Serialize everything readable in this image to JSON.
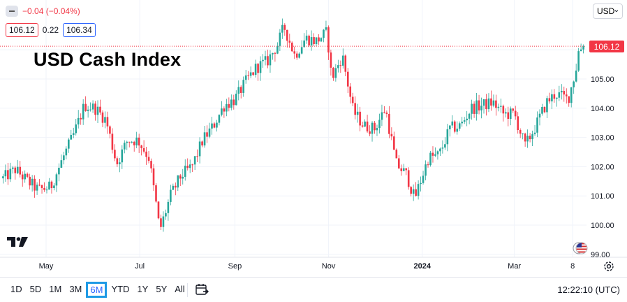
{
  "header": {
    "change_text": "−0.04 (−0.04%)",
    "bid": "106.12",
    "spread": "0.22",
    "ask": "106.34",
    "currency": "USD",
    "last_price_tag": "106.12"
  },
  "title": "USD Cash Index",
  "toolbar": {
    "ranges": [
      "1D",
      "5D",
      "1M",
      "3M",
      "6M",
      "YTD",
      "1Y",
      "5Y",
      "All"
    ],
    "active_range": "6M",
    "clock": "12:22:10 (UTC)"
  },
  "icons": [
    "collapse-icon",
    "chevron-down-icon",
    "tradingview-logo",
    "us-flag-icon",
    "gear-icon",
    "calendar-icon"
  ],
  "colors": {
    "up": "#26a69a",
    "down": "#f23645",
    "ask_border": "#2962ff",
    "active_range": "#1e9ae5"
  },
  "chart_data": {
    "type": "candlestick",
    "title": "USD Cash Index",
    "last_price": 106.12,
    "ylim": [
      99.0,
      106.4
    ],
    "y_ticks": [
      99.0,
      100.0,
      101.0,
      102.0,
      103.0,
      104.0,
      105.0,
      106.0
    ],
    "y_tick_labels": [
      "99.00",
      "100.00",
      "101.00",
      "102.00",
      "103.00",
      "104.00",
      "105.00",
      "106.0"
    ],
    "x_tick_labels": [
      "May",
      "Jul",
      "Sep",
      "Nov",
      "2024",
      "Mar",
      "8"
    ],
    "x_tick_dates": [
      "2023-05-01",
      "2023-07-01",
      "2023-09-01",
      "2023-11-01",
      "2024-01-01",
      "2024-03-01",
      "2024-04-08"
    ],
    "x_range": [
      "2023-04-01",
      "2024-04-17"
    ],
    "grid": true,
    "close_path": [
      [
        "2023-04-03",
        101.6
      ],
      [
        "2023-04-11",
        101.9
      ],
      [
        "2023-04-19",
        101.5
      ],
      [
        "2023-04-26",
        101.2
      ],
      [
        "2023-05-04",
        101.3
      ],
      [
        "2023-05-12",
        102.3
      ],
      [
        "2023-05-19",
        103.1
      ],
      [
        "2023-05-26",
        104.1
      ],
      [
        "2023-06-02",
        104.0
      ],
      [
        "2023-06-09",
        103.6
      ],
      [
        "2023-06-16",
        102.1
      ],
      [
        "2023-06-23",
        102.9
      ],
      [
        "2023-06-30",
        102.9
      ],
      [
        "2023-07-07",
        102.3
      ],
      [
        "2023-07-12",
        100.6
      ],
      [
        "2023-07-14",
        99.8
      ],
      [
        "2023-07-21",
        101.0
      ],
      [
        "2023-07-28",
        101.7
      ],
      [
        "2023-08-04",
        102.0
      ],
      [
        "2023-08-11",
        102.9
      ],
      [
        "2023-08-18",
        103.4
      ],
      [
        "2023-08-25",
        104.1
      ],
      [
        "2023-09-01",
        104.3
      ],
      [
        "2023-09-08",
        104.9
      ],
      [
        "2023-09-15",
        105.4
      ],
      [
        "2023-09-22",
        105.6
      ],
      [
        "2023-09-29",
        106.2
      ],
      [
        "2023-10-03",
        106.8
      ],
      [
        "2023-10-10",
        105.8
      ],
      [
        "2023-10-17",
        106.4
      ],
      [
        "2023-10-24",
        106.3
      ],
      [
        "2023-10-31",
        106.6
      ],
      [
        "2023-11-03",
        105.0
      ],
      [
        "2023-11-10",
        105.8
      ],
      [
        "2023-11-17",
        103.9
      ],
      [
        "2023-11-24",
        103.4
      ],
      [
        "2023-12-01",
        103.3
      ],
      [
        "2023-12-08",
        104.0
      ],
      [
        "2023-12-15",
        102.1
      ],
      [
        "2023-12-22",
        101.7
      ],
      [
        "2023-12-27",
        100.9
      ],
      [
        "2024-01-05",
        102.3
      ],
      [
        "2024-01-12",
        102.4
      ],
      [
        "2024-01-19",
        103.3
      ],
      [
        "2024-01-26",
        103.4
      ],
      [
        "2024-02-02",
        104.0
      ],
      [
        "2024-02-09",
        104.1
      ],
      [
        "2024-02-16",
        104.2
      ],
      [
        "2024-02-23",
        103.8
      ],
      [
        "2024-03-01",
        103.8
      ],
      [
        "2024-03-08",
        102.7
      ],
      [
        "2024-03-15",
        103.4
      ],
      [
        "2024-03-22",
        104.2
      ],
      [
        "2024-03-28",
        104.5
      ],
      [
        "2024-04-05",
        104.3
      ],
      [
        "2024-04-10",
        105.3
      ],
      [
        "2024-04-12",
        106.0
      ],
      [
        "2024-04-15",
        106.12
      ]
    ]
  }
}
